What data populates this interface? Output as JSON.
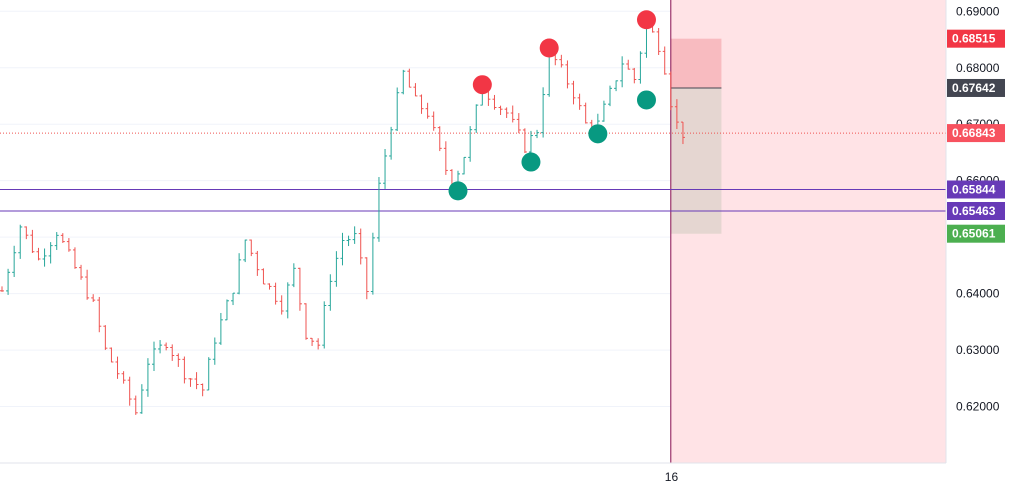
{
  "chart_data": {
    "type": "candlestick",
    "title": "",
    "ylim": [
      0.61,
      0.692
    ],
    "y_ticks": [
      "0.69000",
      "0.68000",
      "0.67000",
      "0.66000",
      "0.64000",
      "0.63000",
      "0.62000"
    ],
    "x_ticks": [
      {
        "label": "16",
        "index": 110
      }
    ],
    "grid": true,
    "colors": {
      "up": "#26a69a",
      "down": "#ef5350",
      "highlight_zone": "#ffe3e6"
    },
    "price_labels": [
      {
        "value": "0.68515",
        "color": "#f23645"
      },
      {
        "value": "0.67642",
        "color": "#434651"
      },
      {
        "value": "0.66843",
        "color": "#f7525f"
      },
      {
        "value": "0.65844",
        "color": "#673ab7"
      },
      {
        "value": "0.65463",
        "color": "#673ab7"
      },
      {
        "value": "0.65061",
        "color": "#4caf50"
      }
    ],
    "horizontal_lines": [
      {
        "price": 0.65844,
        "color": "#673ab7",
        "style": "solid"
      },
      {
        "price": 0.65463,
        "color": "#673ab7",
        "style": "solid"
      },
      {
        "price": 0.66843,
        "color": "#ef5350",
        "style": "dotted"
      }
    ],
    "vertical_line": {
      "index": 110,
      "color": "#880e4f"
    },
    "position_tool": {
      "entry": 0.67642,
      "stop": 0.68515,
      "target": 0.65061,
      "start_index": 110,
      "end_index": 118,
      "loss_color": "#f7b4b8",
      "profit_color": "#e0d4cc"
    },
    "swing_highs": [
      {
        "index": 79,
        "price": 0.677
      },
      {
        "index": 90,
        "price": 0.6835
      },
      {
        "index": 106,
        "price": 0.6885
      }
    ],
    "swing_lows": [
      {
        "index": 75,
        "price": 0.6582
      },
      {
        "index": 87,
        "price": 0.6633
      },
      {
        "index": 98,
        "price": 0.6683
      },
      {
        "index": 106,
        "price": 0.6743
      }
    ],
    "close_anchors": [
      [
        0,
        0.6405
      ],
      [
        3,
        0.652
      ],
      [
        6,
        0.646
      ],
      [
        9,
        0.651
      ],
      [
        12,
        0.6445
      ],
      [
        15,
        0.638
      ],
      [
        17,
        0.63
      ],
      [
        19,
        0.626
      ],
      [
        22,
        0.619
      ],
      [
        24,
        0.628
      ],
      [
        27,
        0.6315
      ],
      [
        30,
        0.626
      ],
      [
        33,
        0.623
      ],
      [
        35,
        0.632
      ],
      [
        38,
        0.641
      ],
      [
        40,
        0.6495
      ],
      [
        43,
        0.6425
      ],
      [
        46,
        0.638
      ],
      [
        48,
        0.644
      ],
      [
        50,
        0.633
      ],
      [
        52,
        0.631
      ],
      [
        54,
        0.643
      ],
      [
        56,
        0.6495
      ],
      [
        58,
        0.65
      ],
      [
        60,
        0.6405
      ],
      [
        62,
        0.659
      ],
      [
        64,
        0.67
      ],
      [
        66,
        0.679
      ],
      [
        68,
        0.674
      ],
      [
        70,
        0.672
      ],
      [
        72,
        0.665
      ],
      [
        74,
        0.659
      ],
      [
        76,
        0.6645
      ],
      [
        79,
        0.6765
      ],
      [
        81,
        0.674
      ],
      [
        83,
        0.672
      ],
      [
        86,
        0.666
      ],
      [
        88,
        0.669
      ],
      [
        90,
        0.683
      ],
      [
        92,
        0.6795
      ],
      [
        94,
        0.6755
      ],
      [
        96,
        0.67
      ],
      [
        98,
        0.67
      ],
      [
        100,
        0.6755
      ],
      [
        102,
        0.681
      ],
      [
        104,
        0.678
      ],
      [
        106,
        0.688
      ],
      [
        108,
        0.684
      ],
      [
        109,
        0.68
      ],
      [
        110,
        0.674
      ],
      [
        111,
        0.67
      ],
      [
        112,
        0.6684
      ]
    ]
  }
}
